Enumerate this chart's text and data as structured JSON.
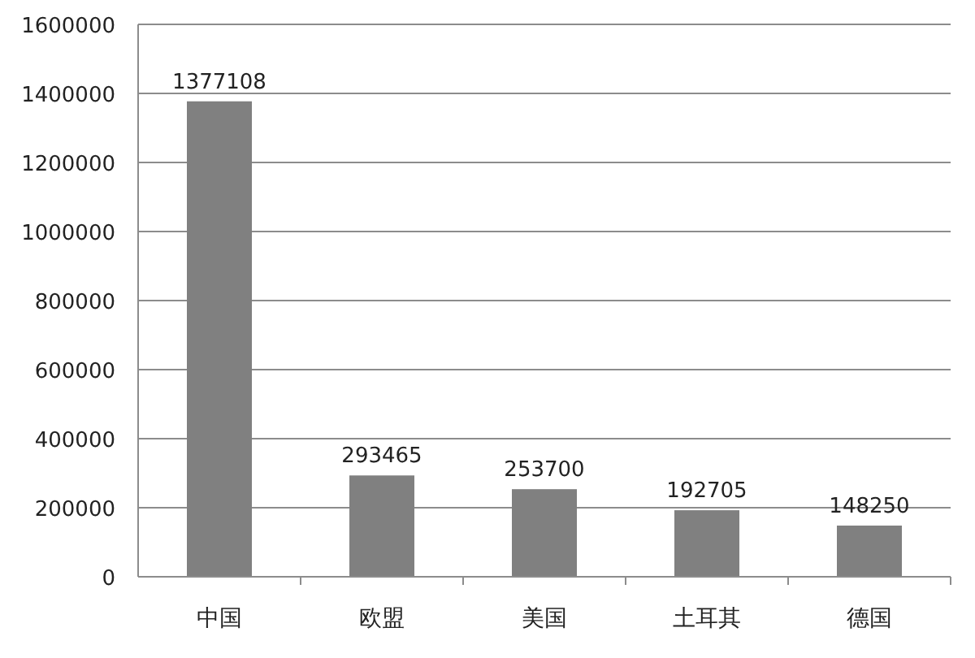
{
  "chart_data": {
    "type": "bar",
    "categories": [
      "中国",
      "欧盟",
      "美国",
      "土耳其",
      "德国"
    ],
    "values": [
      1377108,
      293465,
      253700,
      192705,
      148250
    ],
    "color": "#808080",
    "ylim": [
      0,
      1600000
    ],
    "yticks": [
      0,
      200000,
      400000,
      600000,
      800000,
      1000000,
      1200000,
      1400000,
      1600000
    ],
    "grid": "y",
    "data_labels": true
  }
}
